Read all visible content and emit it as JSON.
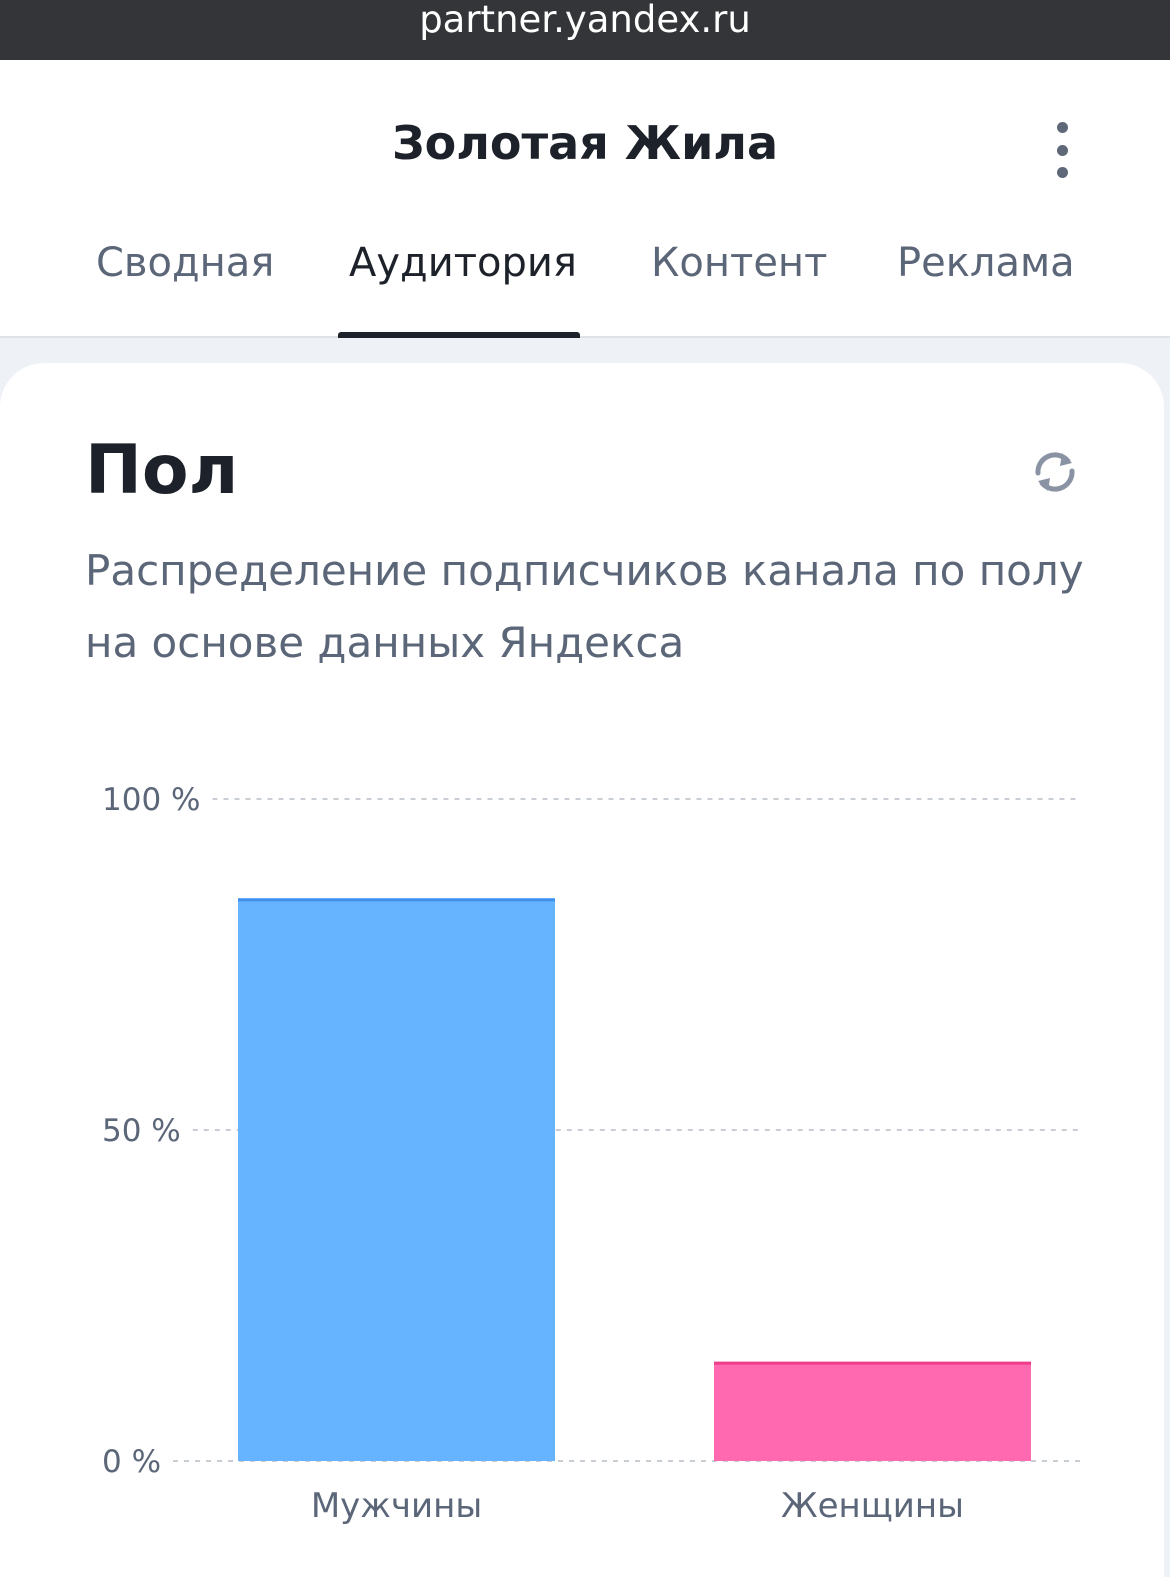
{
  "browser": {
    "url": "partner.yandex.ru"
  },
  "header": {
    "title": "Золотая Жила",
    "menu_icon": "kebab-menu-icon",
    "tabs": [
      {
        "label": "Сводная",
        "active": false
      },
      {
        "label": "Аудитория",
        "active": true
      },
      {
        "label": "Контент",
        "active": false
      },
      {
        "label": "Реклама",
        "active": false
      }
    ]
  },
  "card": {
    "title": "Пол",
    "refresh_icon": "refresh-icon",
    "description": "Распределение подписчиков канала по полу на основе данных Яндекса"
  },
  "colors": {
    "men": "#66b3ff",
    "men_top": "#3f8ff0",
    "women": "#ff69b0",
    "women_top": "#f03c8c",
    "accent_tab": "#1d2129"
  },
  "chart_data": {
    "type": "bar",
    "categories": [
      "Мужчины",
      "Женщины"
    ],
    "values": [
      85,
      15
    ],
    "ylim": [
      0,
      100
    ],
    "yticks": [
      {
        "value": 0,
        "label": "0 %"
      },
      {
        "value": 50,
        "label": "50 %"
      },
      {
        "value": 100,
        "label": "100 %"
      }
    ],
    "grid": true,
    "grid_style": "dashed",
    "legend": "none"
  }
}
